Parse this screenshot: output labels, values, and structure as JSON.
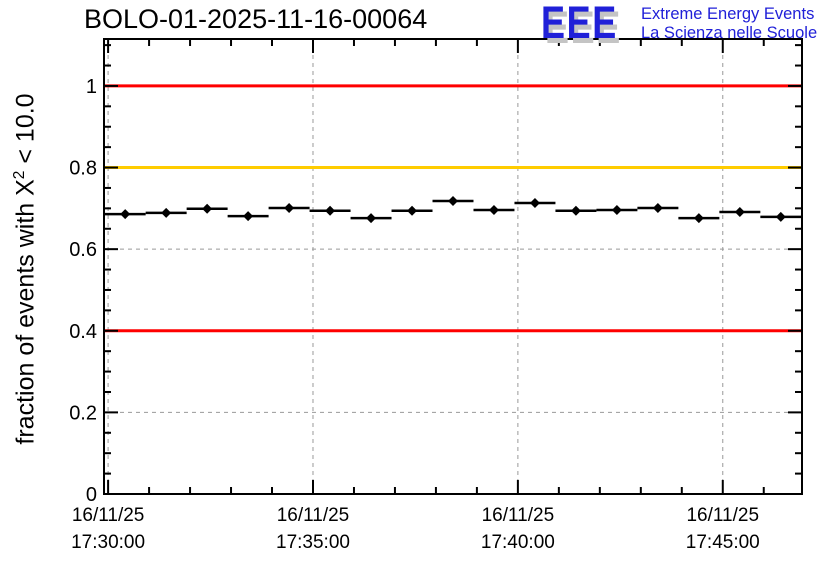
{
  "header": {
    "title": "BOLO-01-2025-11-16-00064",
    "logo": {
      "acronym": "EEE",
      "line1": "Extreme Energy Events",
      "line2": "La Scienza nelle Scuole",
      "text_color": "#2020d8",
      "shadow_color": "#c4c4c4"
    }
  },
  "y_axis_title": {
    "prefix": "fraction of events with X",
    "sup": "2",
    "suffix": " < 10.0"
  },
  "chart_data": {
    "type": "scatter",
    "title": "BOLO-01-2025-11-16-00064",
    "ylabel": "fraction of events with X^2 < 10.0",
    "xlabel": "",
    "grid": true,
    "legend": "none",
    "ylim": [
      0,
      1.115
    ],
    "ytick_values": [
      0,
      0.2,
      0.4,
      0.6,
      0.8,
      1.0
    ],
    "ytick_labels": [
      "0",
      "0.2",
      "0.4",
      "0.6",
      "0.8",
      "1"
    ],
    "y_minor_step": 0.05,
    "x_origin_label": "16/11/25 17:30:00",
    "xlim_seconds": [
      -6,
      1016
    ],
    "xtick_seconds": [
      0,
      300,
      600,
      900
    ],
    "xtick_labels": [
      [
        "16/11/25",
        "17:30:00"
      ],
      [
        "16/11/25",
        "17:35:00"
      ],
      [
        "16/11/25",
        "17:40:00"
      ],
      [
        "16/11/25",
        "17:45:00"
      ]
    ],
    "x_minor_step_seconds": 60,
    "grid_color": "#999999",
    "reference_lines": [
      {
        "y": 1.0,
        "color": "#ff0000"
      },
      {
        "y": 0.8,
        "color": "#ffcc00"
      },
      {
        "y": 0.4,
        "color": "#ff0000"
      }
    ],
    "series": [
      {
        "name": "fraction of events with chi2 < 10",
        "marker": "filled-diamond",
        "color": "#000000",
        "x_halfwidth_seconds": 30,
        "x_seconds": [
          25,
          85,
          145,
          205,
          265,
          325,
          385,
          445,
          505,
          565,
          625,
          685,
          745,
          805,
          865,
          925,
          985
        ],
        "values": [
          0.686,
          0.689,
          0.699,
          0.681,
          0.701,
          0.694,
          0.676,
          0.694,
          0.718,
          0.696,
          0.713,
          0.694,
          0.696,
          0.701,
          0.676,
          0.691,
          0.679
        ]
      }
    ]
  }
}
